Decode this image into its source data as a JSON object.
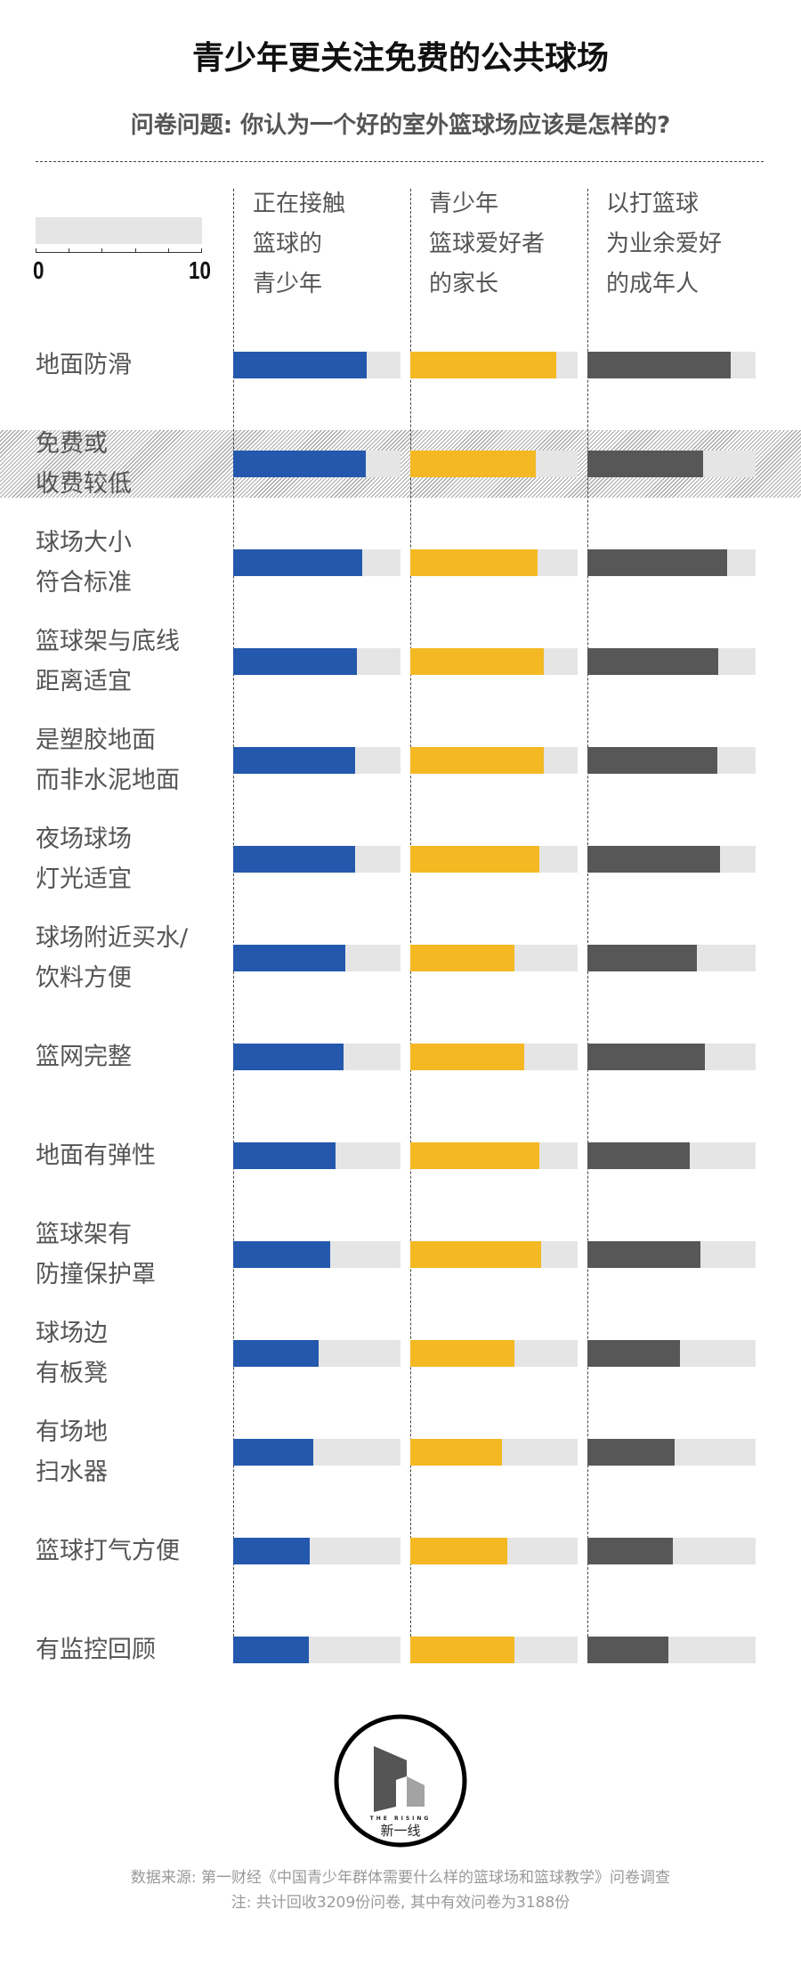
{
  "chart_data": {
    "type": "bar",
    "title": "青少年更关注免费的公共球场",
    "subtitle": "问卷问题: 你认为一个好的室外篮球场应该是怎样的?",
    "scale": {
      "min": 0,
      "max": 10,
      "min_label": "0",
      "max_label": "10"
    },
    "highlighted_category": "免费或\n收费较低",
    "categories": [
      "地面防滑",
      "免费或\n收费较低",
      "球场大小\n符合标准",
      "篮球架与底线\n距离适宜",
      "是塑胶地面\n而非水泥地面",
      "夜场球场\n灯光适宜",
      "球场附近买水/\n饮料方便",
      "篮网完整",
      "地面有弹性",
      "篮球架有\n防撞保护罩",
      "球场边\n有板凳",
      "有场地\n扫水器",
      "篮球打气方便",
      "有监控回顾"
    ],
    "series": [
      {
        "name": "正在接触\n篮球的\n青少年",
        "color": "#2458ad",
        "values": [
          8.0,
          7.9,
          7.7,
          7.4,
          7.3,
          7.3,
          6.7,
          6.6,
          6.1,
          5.8,
          5.1,
          4.8,
          4.6,
          4.5
        ]
      },
      {
        "name": "青少年\n篮球爱好者\n的家长",
        "color": "#f4b823",
        "values": [
          8.7,
          7.5,
          7.6,
          8.0,
          8.0,
          7.7,
          6.2,
          6.8,
          7.7,
          7.8,
          6.2,
          5.5,
          5.8,
          6.2
        ]
      },
      {
        "name": "以打篮球\n为业余爱好\n的成年人",
        "color": "#575757",
        "values": [
          8.5,
          6.9,
          8.3,
          7.8,
          7.7,
          7.9,
          6.5,
          7.0,
          6.1,
          6.7,
          5.5,
          5.2,
          5.1,
          4.8
        ]
      }
    ],
    "track_color": "#e5e5e5",
    "grid": false
  },
  "footer": {
    "source": "数据来源: 第一财经《中国青少年群体需要什么样的篮球场和篮球教学》问卷调查",
    "note": "注: 共计回收3209份问卷, 其中有效问卷为3188份"
  },
  "logo": {
    "text_en": "THE RISING",
    "text_cn": "新一线"
  }
}
